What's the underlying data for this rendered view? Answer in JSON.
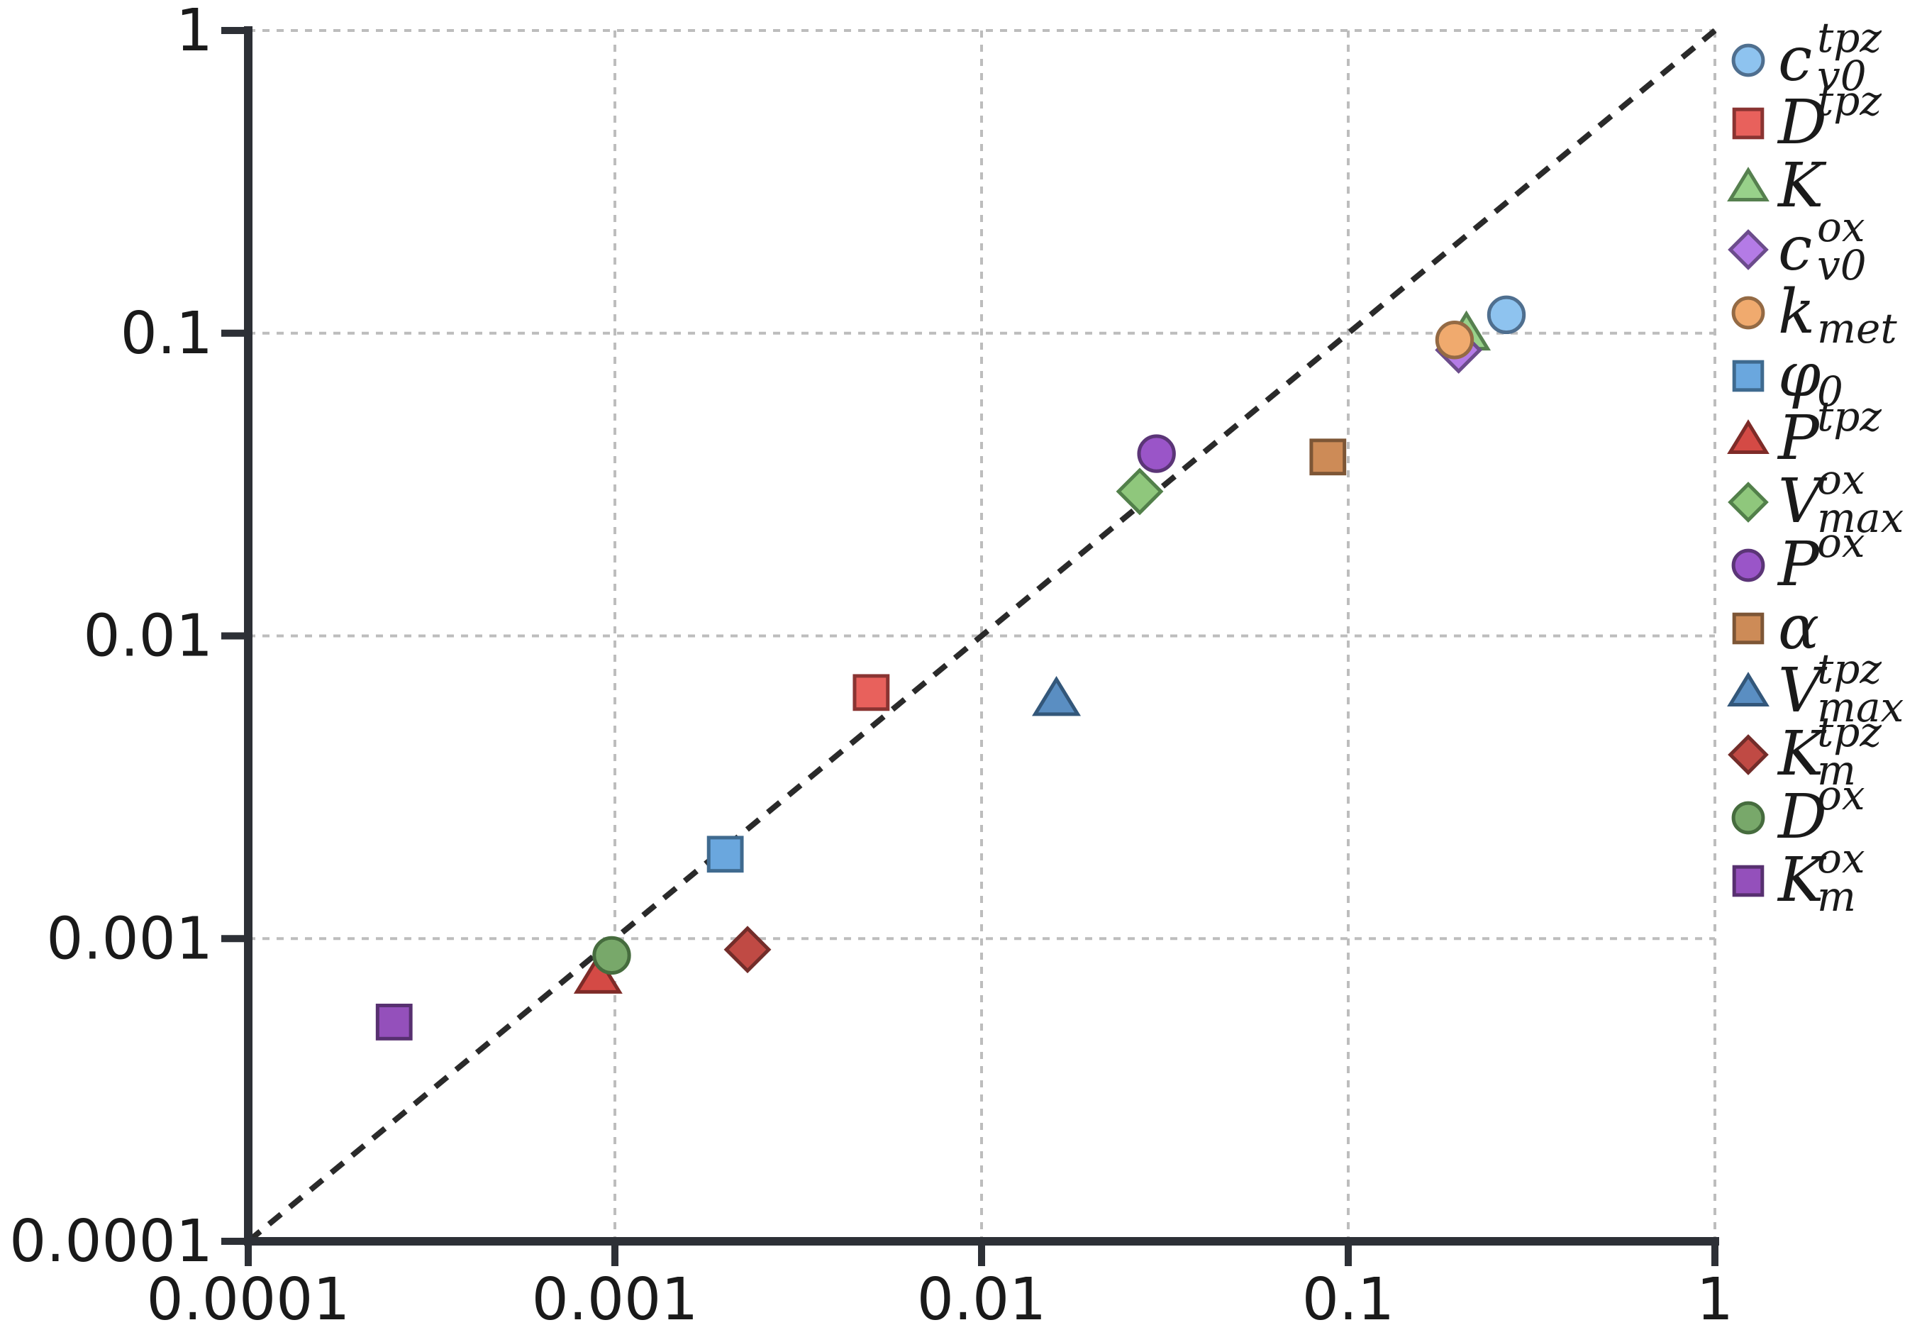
{
  "chart_data": {
    "type": "scatter",
    "x_scale": "log",
    "y_scale": "log",
    "xlim": [
      0.0001,
      1
    ],
    "ylim": [
      0.0001,
      1
    ],
    "grid": true,
    "legend_position": "right",
    "reference_line": "y = x (dashed)",
    "x_ticks": [
      "0.0001",
      "0.001",
      "0.01",
      "0.1",
      "1"
    ],
    "y_ticks": [
      "0.0001",
      "0.001",
      "0.01",
      "0.1",
      "1"
    ],
    "series": [
      {
        "name": "c_v0^tpz",
        "label": {
          "base": "c",
          "sup": "tpz",
          "sub": "v0"
        },
        "marker": "circle",
        "color": "#8ec3ef",
        "stroke": "#4f6f8f",
        "x": 0.27,
        "y": 0.115
      },
      {
        "name": "D^tpz",
        "label": {
          "base": "D",
          "sup": "tpz",
          "sub": ""
        },
        "marker": "square",
        "color": "#e8615c",
        "stroke": "#8a3432",
        "x": 0.005,
        "y": 0.0065
      },
      {
        "name": "K",
        "label": {
          "base": "K",
          "sup": "",
          "sub": ""
        },
        "marker": "triangle",
        "color": "#98d18a",
        "stroke": "#56804f",
        "x": 0.21,
        "y": 0.1
      },
      {
        "name": "c_v0^ox",
        "label": {
          "base": "c",
          "sup": "ox",
          "sub": "v0"
        },
        "marker": "diamond",
        "color": "#b47be6",
        "stroke": "#6c4c8c",
        "x": 0.2,
        "y": 0.088
      },
      {
        "name": "k_met",
        "label": {
          "base": "k",
          "sup": "",
          "sub": "met"
        },
        "marker": "circle",
        "color": "#f0aa6e",
        "stroke": "#946a44",
        "x": 0.195,
        "y": 0.095
      },
      {
        "name": "phi_0",
        "label": {
          "base": "φ",
          "sup": "",
          "sub": "0"
        },
        "marker": "square",
        "color": "#6aa7de",
        "stroke": "#3f6a8f",
        "x": 0.002,
        "y": 0.0019
      },
      {
        "name": "P^tpz",
        "label": {
          "base": "P",
          "sup": "tpz",
          "sub": ""
        },
        "marker": "triangle",
        "color": "#d44a45",
        "stroke": "#7e2b28",
        "x": 0.0009,
        "y": 0.00075
      },
      {
        "name": "V_max^ox",
        "label": {
          "base": "V",
          "sup": "ox",
          "sub": "max"
        },
        "marker": "diamond",
        "color": "#8fc77c",
        "stroke": "#52804a",
        "x": 0.027,
        "y": 0.03
      },
      {
        "name": "P^ox",
        "label": {
          "base": "P",
          "sup": "ox",
          "sub": ""
        },
        "marker": "circle",
        "color": "#9a55c8",
        "stroke": "#5b3577",
        "x": 0.03,
        "y": 0.04
      },
      {
        "name": "alpha",
        "label": {
          "base": "α",
          "sup": "",
          "sub": ""
        },
        "marker": "square",
        "color": "#cd8b57",
        "stroke": "#7d5636",
        "x": 0.088,
        "y": 0.039
      },
      {
        "name": "V_max^tpz",
        "label": {
          "base": "V",
          "sup": "tpz",
          "sub": "max"
        },
        "marker": "triangle",
        "color": "#5a8ec2",
        "stroke": "#33577a",
        "x": 0.016,
        "y": 0.0062
      },
      {
        "name": "K_m^tpz",
        "label": {
          "base": "K",
          "sup": "tpz",
          "sub": "m"
        },
        "marker": "diamond",
        "color": "#c04a44",
        "stroke": "#732d2a",
        "x": 0.0023,
        "y": 0.00092
      },
      {
        "name": "D^ox",
        "label": {
          "base": "D",
          "sup": "ox",
          "sub": ""
        },
        "marker": "circle",
        "color": "#78a86a",
        "stroke": "#466c3e",
        "x": 0.00098,
        "y": 0.00088
      },
      {
        "name": "K_m^ox",
        "label": {
          "base": "K",
          "sup": "ox",
          "sub": "m"
        },
        "marker": "square",
        "color": "#9450bb",
        "stroke": "#573070",
        "x": 0.00025,
        "y": 0.00053
      }
    ]
  }
}
